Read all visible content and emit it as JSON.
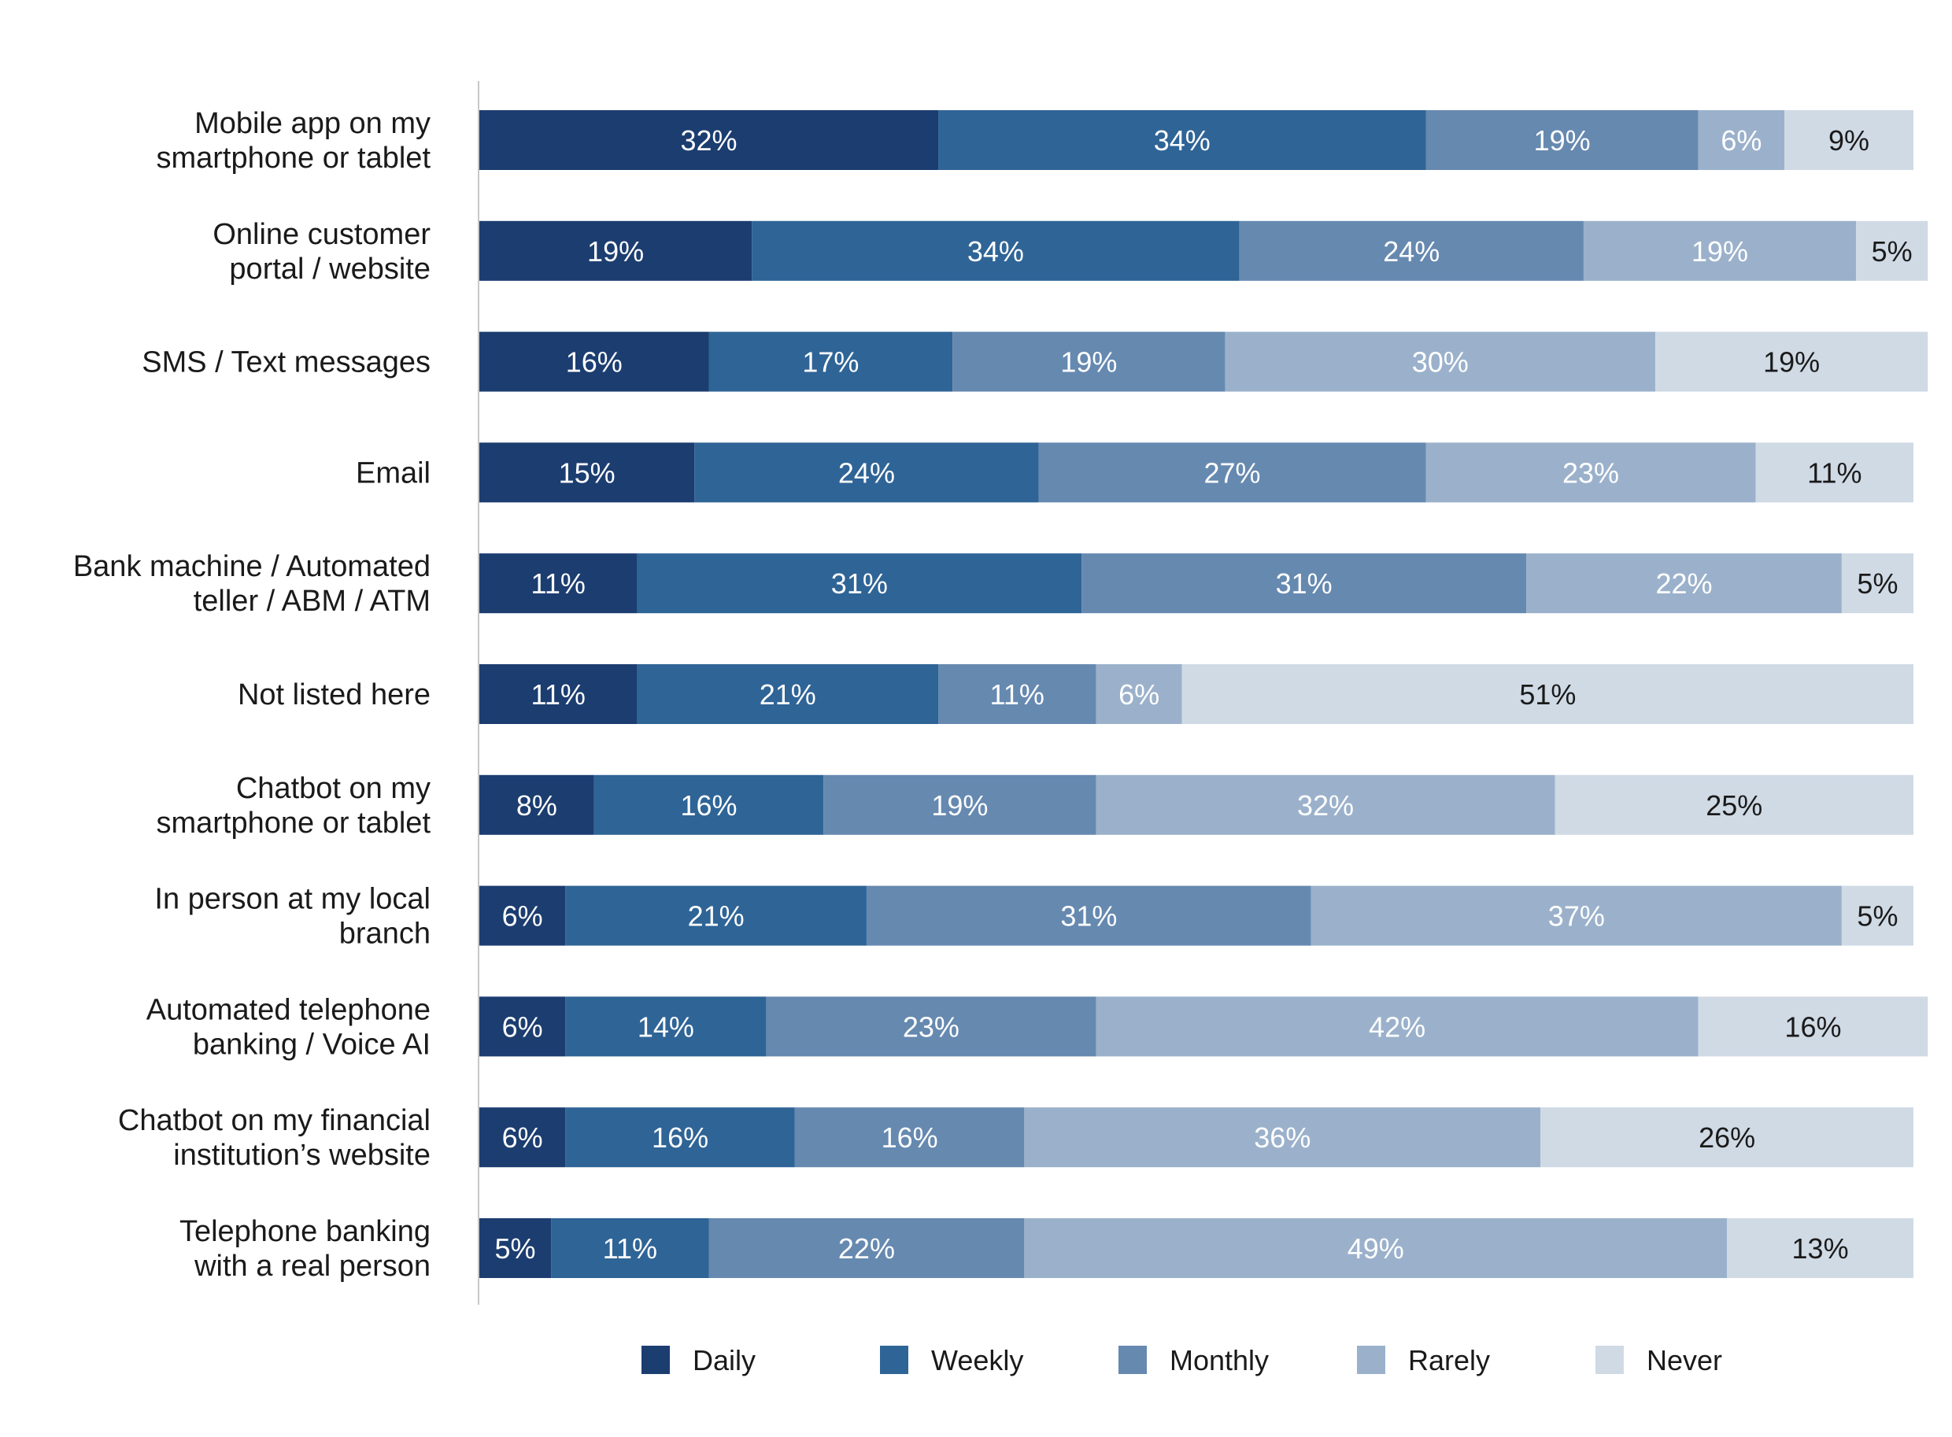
{
  "chart_data": {
    "type": "bar",
    "orientation": "horizontal",
    "stacked": true,
    "title": "",
    "xlabel": "",
    "ylabel": "",
    "xlim": [
      0,
      100
    ],
    "grid": false,
    "legend_position": "bottom",
    "categories": [
      [
        "Mobile app on my",
        "smartphone or tablet"
      ],
      [
        "Online customer",
        "portal / website"
      ],
      [
        "SMS / Text messages"
      ],
      [
        "Email"
      ],
      [
        "Bank machine / Automated",
        "teller / ABM / ATM"
      ],
      [
        "Not listed here"
      ],
      [
        "Chatbot on my",
        "smartphone or tablet"
      ],
      [
        "In person at my local",
        "branch"
      ],
      [
        "Automated telephone",
        "banking / Voice AI"
      ],
      [
        "Chatbot on my financial",
        "institution’s website"
      ],
      [
        "Telephone banking",
        "with a real person"
      ]
    ],
    "series": [
      {
        "name": "Daily",
        "color": "#1c3d70",
        "label_color": "#ffffff",
        "values": [
          32,
          19,
          16,
          15,
          11,
          11,
          8,
          6,
          6,
          6,
          5
        ]
      },
      {
        "name": "Weekly",
        "color": "#2f6496",
        "label_color": "#ffffff",
        "values": [
          34,
          34,
          17,
          24,
          31,
          21,
          16,
          21,
          14,
          16,
          11
        ]
      },
      {
        "name": "Monthly",
        "color": "#6689b0",
        "label_color": "#ffffff",
        "values": [
          19,
          24,
          19,
          27,
          31,
          11,
          19,
          31,
          23,
          16,
          22
        ]
      },
      {
        "name": "Rarely",
        "color": "#9bb1cb",
        "label_color": "#ffffff",
        "values": [
          6,
          19,
          30,
          23,
          22,
          6,
          32,
          37,
          42,
          36,
          49
        ]
      },
      {
        "name": "Never",
        "color": "#d0dae5",
        "label_color": "#1a1a1a",
        "values": [
          9,
          5,
          19,
          11,
          5,
          51,
          25,
          5,
          16,
          26,
          13
        ]
      }
    ],
    "value_suffix": "%"
  }
}
